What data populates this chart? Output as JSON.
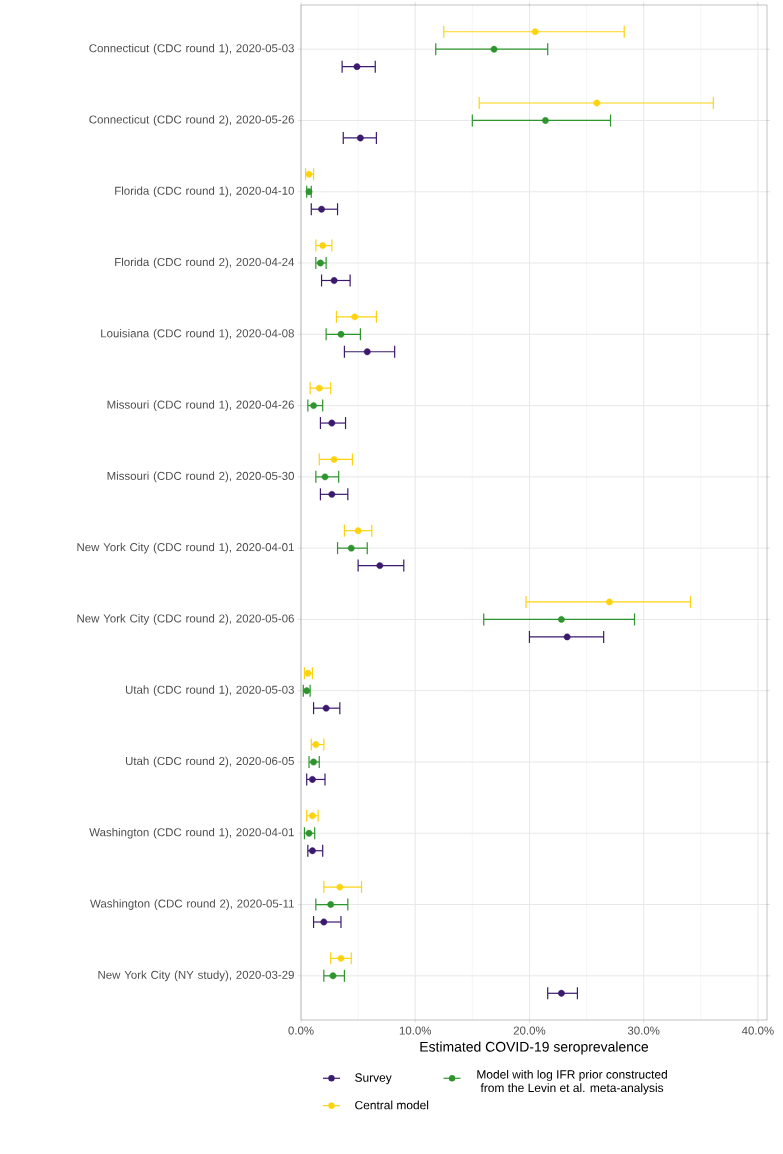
{
  "chart_data": {
    "type": "scatter",
    "orientation": "horizontal",
    "xlabel": "Estimated COVID-19 seroprevalence",
    "categories": [
      "Connecticut (CDC round 1), 2020-05-03",
      "Connecticut (CDC round 2), 2020-05-26",
      "Florida (CDC round 1), 2020-04-10",
      "Florida (CDC round 2), 2020-04-24",
      "Louisiana (CDC round 1), 2020-04-08",
      "Missouri (CDC round 1), 2020-04-26",
      "Missouri (CDC round 2), 2020-05-30",
      "New York City (CDC round 1), 2020-04-01",
      "New York City (CDC round 2), 2020-05-06",
      "Utah (CDC round 1), 2020-05-03",
      "Utah (CDC round 2), 2020-06-05",
      "Washington (CDC round 1), 2020-04-01",
      "Washington (CDC round 2), 2020-05-11",
      "New York City (NY study), 2020-03-29"
    ],
    "series": [
      {
        "name": "Survey",
        "color": "#3b1a6e",
        "values": [
          4.9,
          5.2,
          1.8,
          2.9,
          5.8,
          2.7,
          2.7,
          6.9,
          23.3,
          2.2,
          1.0,
          1.0,
          2.0,
          22.8
        ],
        "errors": [
          [
            3.6,
            6.5
          ],
          [
            3.7,
            6.6
          ],
          [
            0.9,
            3.2
          ],
          [
            1.8,
            4.3
          ],
          [
            3.8,
            8.2
          ],
          [
            1.7,
            3.9
          ],
          [
            1.7,
            4.1
          ],
          [
            5.0,
            9.0
          ],
          [
            20.0,
            26.5
          ],
          [
            1.1,
            3.4
          ],
          [
            0.5,
            2.1
          ],
          [
            0.6,
            1.9
          ],
          [
            1.1,
            3.5
          ],
          [
            21.6,
            24.2
          ]
        ]
      },
      {
        "name": "Model with log IFR prior constructed from the Levin et al. meta-analysis",
        "color": "#2e942e",
        "values": [
          16.9,
          21.4,
          0.7,
          1.7,
          3.5,
          1.1,
          2.1,
          4.4,
          22.8,
          0.5,
          1.1,
          0.7,
          2.6,
          2.8
        ],
        "errors": [
          [
            11.8,
            21.6
          ],
          [
            15.0,
            27.1
          ],
          [
            0.5,
            0.9
          ],
          [
            1.3,
            2.2
          ],
          [
            2.2,
            5.2
          ],
          [
            0.6,
            1.9
          ],
          [
            1.3,
            3.3
          ],
          [
            3.2,
            5.8
          ],
          [
            16.0,
            29.2
          ],
          [
            0.2,
            0.8
          ],
          [
            0.7,
            1.6
          ],
          [
            0.3,
            1.2
          ],
          [
            1.3,
            4.1
          ],
          [
            2.0,
            3.8
          ]
        ]
      },
      {
        "name": "Central model",
        "color": "#fdd30f",
        "values": [
          20.5,
          25.9,
          0.7,
          1.9,
          4.7,
          1.6,
          2.9,
          5.0,
          27.0,
          0.6,
          1.3,
          1.0,
          3.4,
          3.5
        ],
        "errors": [
          [
            12.5,
            28.3
          ],
          [
            15.6,
            36.1
          ],
          [
            0.4,
            1.1
          ],
          [
            1.3,
            2.7
          ],
          [
            3.1,
            6.6
          ],
          [
            0.8,
            2.6
          ],
          [
            1.6,
            4.5
          ],
          [
            3.8,
            6.2
          ],
          [
            19.7,
            34.1
          ],
          [
            0.3,
            1.0
          ],
          [
            0.9,
            2.0
          ],
          [
            0.5,
            1.5
          ],
          [
            2.0,
            5.3
          ],
          [
            2.6,
            4.4
          ]
        ]
      }
    ],
    "xlim": [
      0,
      40.8
    ],
    "xticks": [
      {
        "value": 0,
        "label": "0.0%"
      },
      {
        "value": 10,
        "label": "10.0%"
      },
      {
        "value": 20,
        "label": "20.0%"
      },
      {
        "value": 30,
        "label": "30.0%"
      },
      {
        "value": 40,
        "label": "40.0%"
      }
    ],
    "grid": true,
    "legend": "bottom",
    "marker": "circle"
  }
}
